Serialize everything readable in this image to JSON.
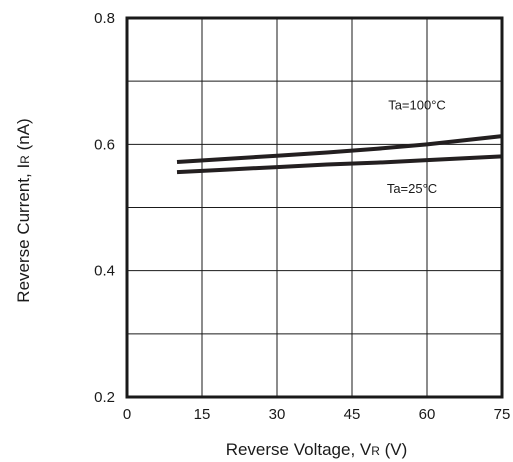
{
  "chart_data": {
    "type": "line",
    "title": "",
    "xlabel": {
      "prefix": "Reverse Voltage, V",
      "sub": "R",
      "suffix": " (V)"
    },
    "ylabel": {
      "prefix": "Reverse Current, I",
      "sub": "R",
      "suffix": " (nA)"
    },
    "xlim": [
      0,
      75
    ],
    "ylim": [
      0.2,
      0.8
    ],
    "x_ticks": [
      0,
      15,
      30,
      45,
      60,
      75
    ],
    "x_tick_labels": [
      "0",
      "15",
      "30",
      "45",
      "60",
      "75"
    ],
    "y_ticks": [
      0.2,
      0.4,
      0.6,
      0.8
    ],
    "y_tick_labels": [
      "0.2",
      "0.4",
      "0.6",
      "0.8"
    ],
    "y_grid": [
      0.2,
      0.3,
      0.4,
      0.5,
      0.6,
      0.7,
      0.8
    ],
    "grid": true,
    "legend": "none",
    "line_color": "#231f20",
    "series": [
      {
        "x": [
          10,
          20,
          30,
          40,
          50,
          60,
          75
        ],
        "y": [
          0.572,
          0.577,
          0.582,
          0.587,
          0.593,
          0.6,
          0.613
        ]
      },
      {
        "x": [
          10,
          20,
          30,
          40,
          50,
          60,
          75
        ],
        "y": [
          0.556,
          0.56,
          0.564,
          0.568,
          0.571,
          0.575,
          0.581
        ]
      }
    ],
    "annotations": [
      {
        "text": "Ta=100°C",
        "x": 58,
        "y": 0.655
      },
      {
        "text": "Ta=25°C",
        "x": 57,
        "y": 0.523
      }
    ]
  }
}
